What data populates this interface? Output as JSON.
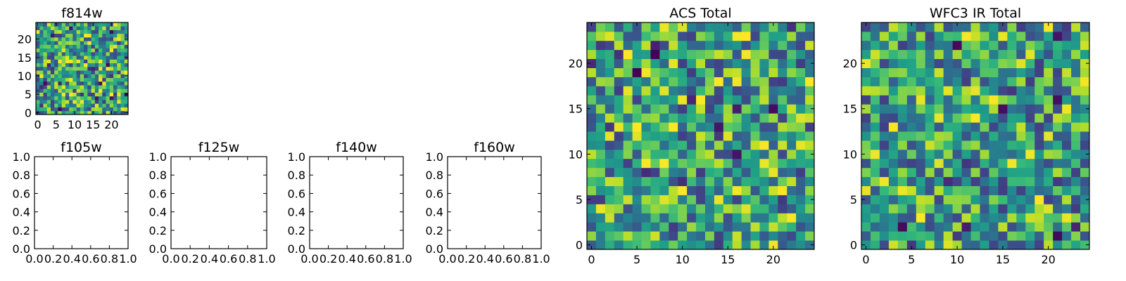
{
  "chart_data": [
    {
      "type": "heatmap",
      "title": "f814w",
      "shape": [
        25,
        25
      ],
      "xticks": [
        "0",
        "5",
        "10",
        "15",
        "20"
      ],
      "yticks": [
        "0",
        "5",
        "10",
        "15",
        "20"
      ],
      "colormap": "viridis",
      "seed": 814
    },
    {
      "type": "empty",
      "title": "f105w",
      "xticks": [
        "0.0",
        "0.2",
        "0.4",
        "0.6",
        "0.8",
        "1.0"
      ],
      "yticks": [
        "0.0",
        "0.2",
        "0.4",
        "0.6",
        "0.8",
        "1.0"
      ],
      "xlim": [
        0,
        1
      ],
      "ylim": [
        0,
        1
      ]
    },
    {
      "type": "empty",
      "title": "f125w",
      "xticks": [
        "0.0",
        "0.2",
        "0.4",
        "0.6",
        "0.8",
        "1.0"
      ],
      "yticks": [
        "0.0",
        "0.2",
        "0.4",
        "0.6",
        "0.8",
        "1.0"
      ],
      "xlim": [
        0,
        1
      ],
      "ylim": [
        0,
        1
      ]
    },
    {
      "type": "empty",
      "title": "f140w",
      "xticks": [
        "0.0",
        "0.2",
        "0.4",
        "0.6",
        "0.8",
        "1.0"
      ],
      "yticks": [
        "0.0",
        "0.2",
        "0.4",
        "0.6",
        "0.8",
        "1.0"
      ],
      "xlim": [
        0,
        1
      ],
      "ylim": [
        0,
        1
      ]
    },
    {
      "type": "empty",
      "title": "f160w",
      "xticks": [
        "0.0",
        "0.2",
        "0.4",
        "0.6",
        "0.8",
        "1.0"
      ],
      "yticks": [
        "0.0",
        "0.2",
        "0.4",
        "0.6",
        "0.8",
        "1.0"
      ],
      "xlim": [
        0,
        1
      ],
      "ylim": [
        0,
        1
      ]
    },
    {
      "type": "heatmap",
      "title": "ACS Total",
      "shape": [
        25,
        25
      ],
      "xticks": [
        "0",
        "5",
        "10",
        "15",
        "20"
      ],
      "yticks": [
        "0",
        "5",
        "10",
        "15",
        "20"
      ],
      "colormap": "viridis",
      "seed": 1001
    },
    {
      "type": "heatmap",
      "title": "WFC3 IR Total",
      "shape": [
        25,
        25
      ],
      "xticks": [
        "0",
        "5",
        "10",
        "15",
        "20"
      ],
      "yticks": [
        "0",
        "5",
        "10",
        "15",
        "20"
      ],
      "colormap": "viridis",
      "seed": 3003
    }
  ]
}
